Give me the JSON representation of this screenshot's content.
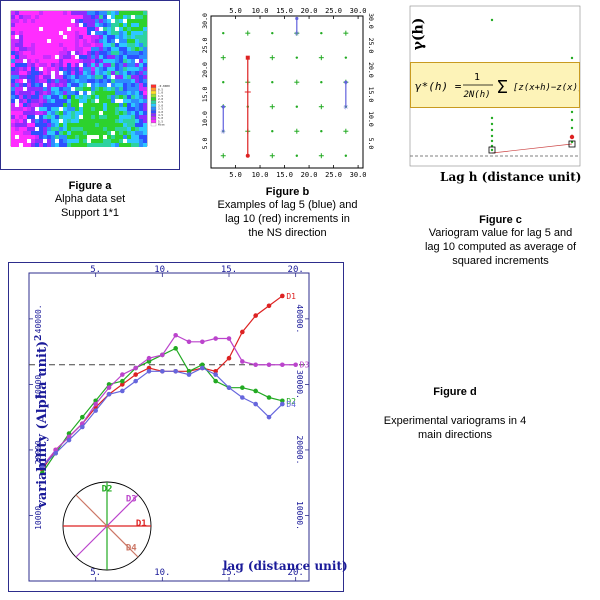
{
  "figure_a": {
    "caption_title": "Figure a",
    "caption_lines": [
      "Alpha data set",
      "Support  1*1"
    ],
    "legend_labels": [
      "-0.8000",
      "0.5",
      "1.0",
      "1.5",
      "2.0",
      "2.5",
      "3.0",
      "3.5",
      "4.0",
      "4.5",
      "5.0",
      "5.5",
      "Miss"
    ],
    "legend_colors": [
      "#ff2d2d",
      "#ff9a2d",
      "#ffe02d",
      "#9ae02d",
      "#2dd22d",
      "#2dd2a0",
      "#2dc8ff",
      "#2d8cff",
      "#2d50ff",
      "#8c2dff",
      "#c82dff",
      "#ff2dff",
      "#ffffff"
    ]
  },
  "figure_b": {
    "caption_title": "Figure b",
    "caption_lines": [
      "Examples of lag 5 (blue) and",
      "lag 10  (red) increments in",
      "the NS direction"
    ],
    "top_ticks": [
      "5.0",
      "10.0",
      "15.0",
      "20.0",
      "25.0",
      "30.0"
    ],
    "bottom_ticks": [
      "5.0",
      "10.0",
      "15.0",
      "20.0",
      "25.0",
      "30.0"
    ],
    "side_ticks": [
      "5.0",
      "10.0",
      "15.0",
      "20.0",
      "25.0",
      "30.0"
    ],
    "colors": {
      "grid_points": "#22aa22",
      "lag5": "#6060dd",
      "lag10": "#dd2222"
    }
  },
  "figure_c": {
    "caption_title": "Figure c",
    "caption_lines": [
      "Variogram value  for lag 5 and",
      "lag 10 computed  as average of",
      "squared increments"
    ],
    "ylabel": "γ(h)",
    "xlabel": "Lag h (distance unit)"
  },
  "figure_d": {
    "caption_title": "Figure d",
    "caption_lines": [
      "Experimental variograms in 4",
      "main directions"
    ],
    "ylabel": "variability (Alpha unit)",
    "ylabel_exp": "2",
    "xlabel": "lag (distance unit)",
    "direction_labels": [
      "D1",
      "D2",
      "D3",
      "D4"
    ]
  },
  "chart_data": {
    "type": "line",
    "xlabel": "lag (distance unit)",
    "ylabel": "variability (Alpha unit)2",
    "xlim": [
      0,
      21
    ],
    "ylim": [
      0,
      47000
    ],
    "x_ticks": [
      "5.",
      "10.",
      "15.",
      "20."
    ],
    "y_ticks": [
      "10000.",
      "20000.",
      "30000.",
      "40000."
    ],
    "right_ticks": [
      "10000.",
      "20000.",
      "30000.",
      "40000."
    ],
    "sill": 33000,
    "series": [
      {
        "name": "D1",
        "color": "#dd2222",
        "x": [
          1,
          2,
          3,
          4,
          5,
          6,
          7,
          8,
          9,
          10,
          11,
          12,
          13,
          14,
          15,
          16,
          17,
          18,
          19
        ],
        "y": [
          17000,
          20000,
          22000,
          24000,
          26500,
          28500,
          30000,
          31500,
          32500,
          32000,
          32000,
          32000,
          32500,
          32000,
          34000,
          38000,
          40500,
          42000,
          43500
        ]
      },
      {
        "name": "D2",
        "color": "#22aa22",
        "x": [
          1,
          2,
          3,
          4,
          5,
          6,
          7,
          8,
          9,
          10,
          11,
          12,
          13,
          14,
          15,
          16,
          17,
          18,
          19
        ],
        "y": [
          16500,
          19500,
          22500,
          25000,
          27500,
          30000,
          30500,
          32500,
          33500,
          34500,
          35500,
          32000,
          33000,
          30500,
          29500,
          29500,
          29000,
          28000,
          27500
        ]
      },
      {
        "name": "D3",
        "color": "#bb44cc",
        "x": [
          1,
          2,
          3,
          4,
          5,
          6,
          7,
          8,
          9,
          10,
          11,
          12,
          13,
          14,
          15,
          16,
          17,
          18,
          19,
          20
        ],
        "y": [
          17500,
          20000,
          22000,
          24000,
          27000,
          29500,
          31500,
          32500,
          34000,
          34500,
          37500,
          36500,
          36500,
          37000,
          37000,
          33500,
          33000,
          33000,
          33000,
          33000
        ]
      },
      {
        "name": "D4",
        "color": "#6666dd",
        "x": [
          1,
          2,
          3,
          4,
          5,
          6,
          7,
          8,
          9,
          10,
          11,
          12,
          13,
          14,
          15,
          16,
          17,
          18,
          19
        ],
        "y": [
          17500,
          19500,
          21500,
          23500,
          26000,
          28500,
          29000,
          30500,
          32000,
          32000,
          32000,
          31500,
          32500,
          31500,
          29500,
          28000,
          27000,
          25000,
          27000
        ]
      }
    ]
  }
}
